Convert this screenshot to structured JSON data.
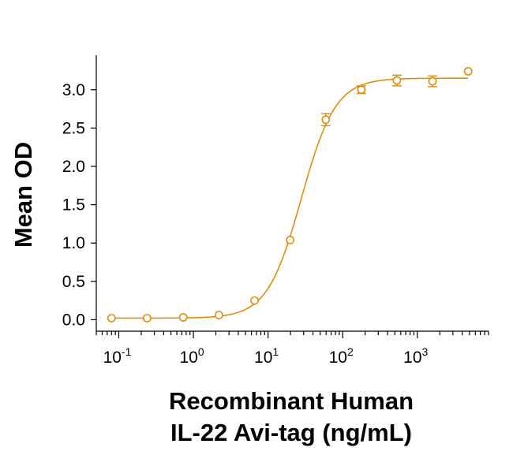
{
  "chart_data": {
    "type": "scatter",
    "title": "",
    "xlabel_lines": [
      "Recombinant Human",
      "IL-22 Avi-tag (ng/mL)"
    ],
    "ylabel": "Mean OD",
    "x_scale": "log10",
    "xlim": [
      0.05,
      9000
    ],
    "ylim": [
      -0.15,
      3.45
    ],
    "y_ticks": [
      0.0,
      0.5,
      1.0,
      1.5,
      2.0,
      2.5,
      3.0
    ],
    "y_tick_labels": [
      "0.0",
      "0.5",
      "1.0",
      "1.5",
      "2.0",
      "2.5",
      "3.0"
    ],
    "x_ticks": [
      {
        "value": 0.1,
        "base": "10",
        "exp": "-1"
      },
      {
        "value": 1,
        "base": "10",
        "exp": "0"
      },
      {
        "value": 10,
        "base": "10",
        "exp": "1"
      },
      {
        "value": 100,
        "base": "10",
        "exp": "2"
      },
      {
        "value": 1000,
        "base": "10",
        "exp": "3"
      }
    ],
    "grid": false,
    "color": "#E08E0B",
    "series": [
      {
        "points": [
          {
            "x": 0.08,
            "y": 0.02,
            "err": 0.0
          },
          {
            "x": 0.24,
            "y": 0.02,
            "err": 0.0
          },
          {
            "x": 0.73,
            "y": 0.03,
            "err": 0.0
          },
          {
            "x": 2.2,
            "y": 0.06,
            "err": 0.0
          },
          {
            "x": 6.6,
            "y": 0.25,
            "err": 0.0
          },
          {
            "x": 19.8,
            "y": 1.04,
            "err": 0.0
          },
          {
            "x": 59.4,
            "y": 2.61,
            "err": 0.08
          },
          {
            "x": 178,
            "y": 3.0,
            "err": 0.05
          },
          {
            "x": 533,
            "y": 3.12,
            "err": 0.07
          },
          {
            "x": 1600,
            "y": 3.11,
            "err": 0.07
          },
          {
            "x": 4800,
            "y": 3.24,
            "err": 0.0
          }
        ],
        "fit": {
          "model": "4PL",
          "bottom": 0.02,
          "top": 3.15,
          "ec50": 28,
          "hill": 1.9
        }
      }
    ]
  }
}
